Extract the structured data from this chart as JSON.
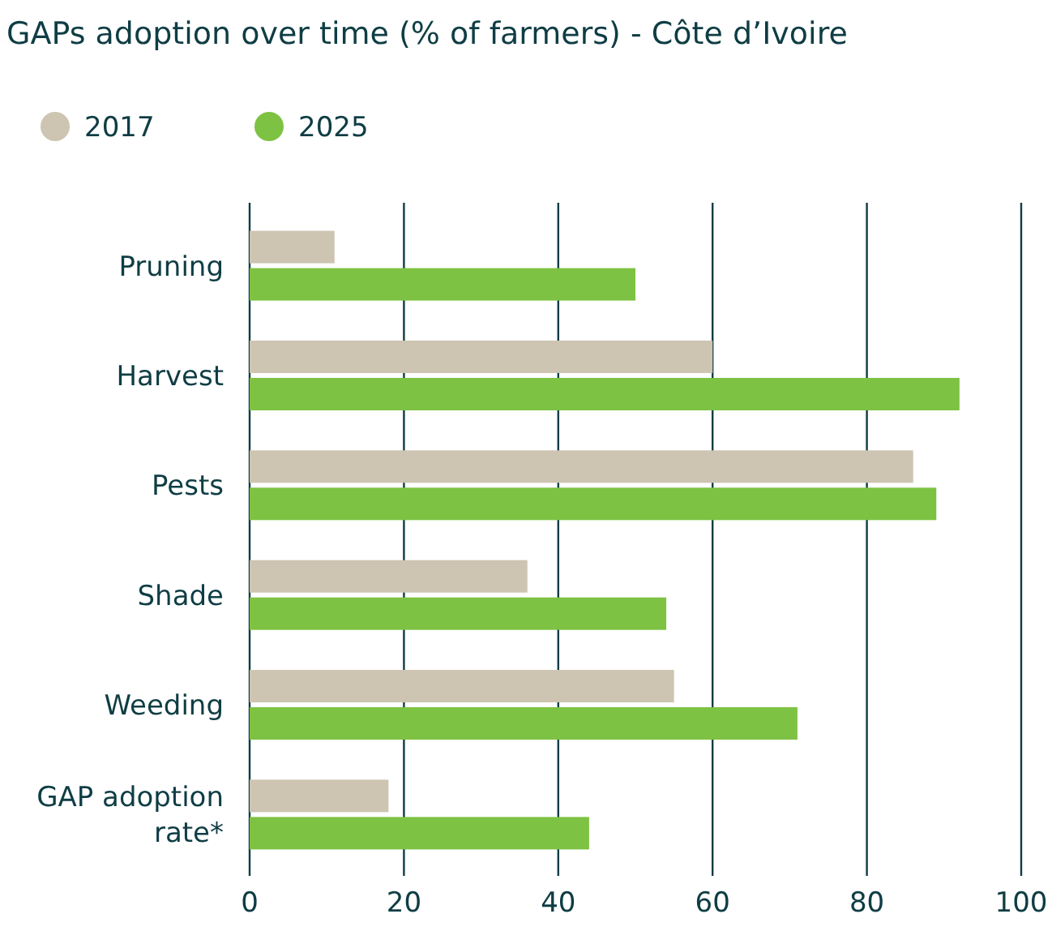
{
  "chart_data": {
    "type": "bar",
    "orientation": "horizontal",
    "title": "GAPs adoption over time (% of farmers) - Côte d’Ivoire",
    "categories": [
      "Pruning",
      "Harvest",
      "Pests",
      "Shade",
      "Weeding",
      "GAP adoption rate*"
    ],
    "series": [
      {
        "name": "2017",
        "color": "#cdc4b1",
        "values": [
          11,
          60,
          86,
          36,
          55,
          18
        ]
      },
      {
        "name": "2025",
        "color": "#7dc243",
        "values": [
          50,
          92,
          89,
          54,
          71,
          44
        ]
      }
    ],
    "xlim": [
      0,
      100
    ],
    "xticks": [
      0,
      20,
      40,
      60,
      80,
      100
    ],
    "grid": "x",
    "legend": "top left"
  }
}
